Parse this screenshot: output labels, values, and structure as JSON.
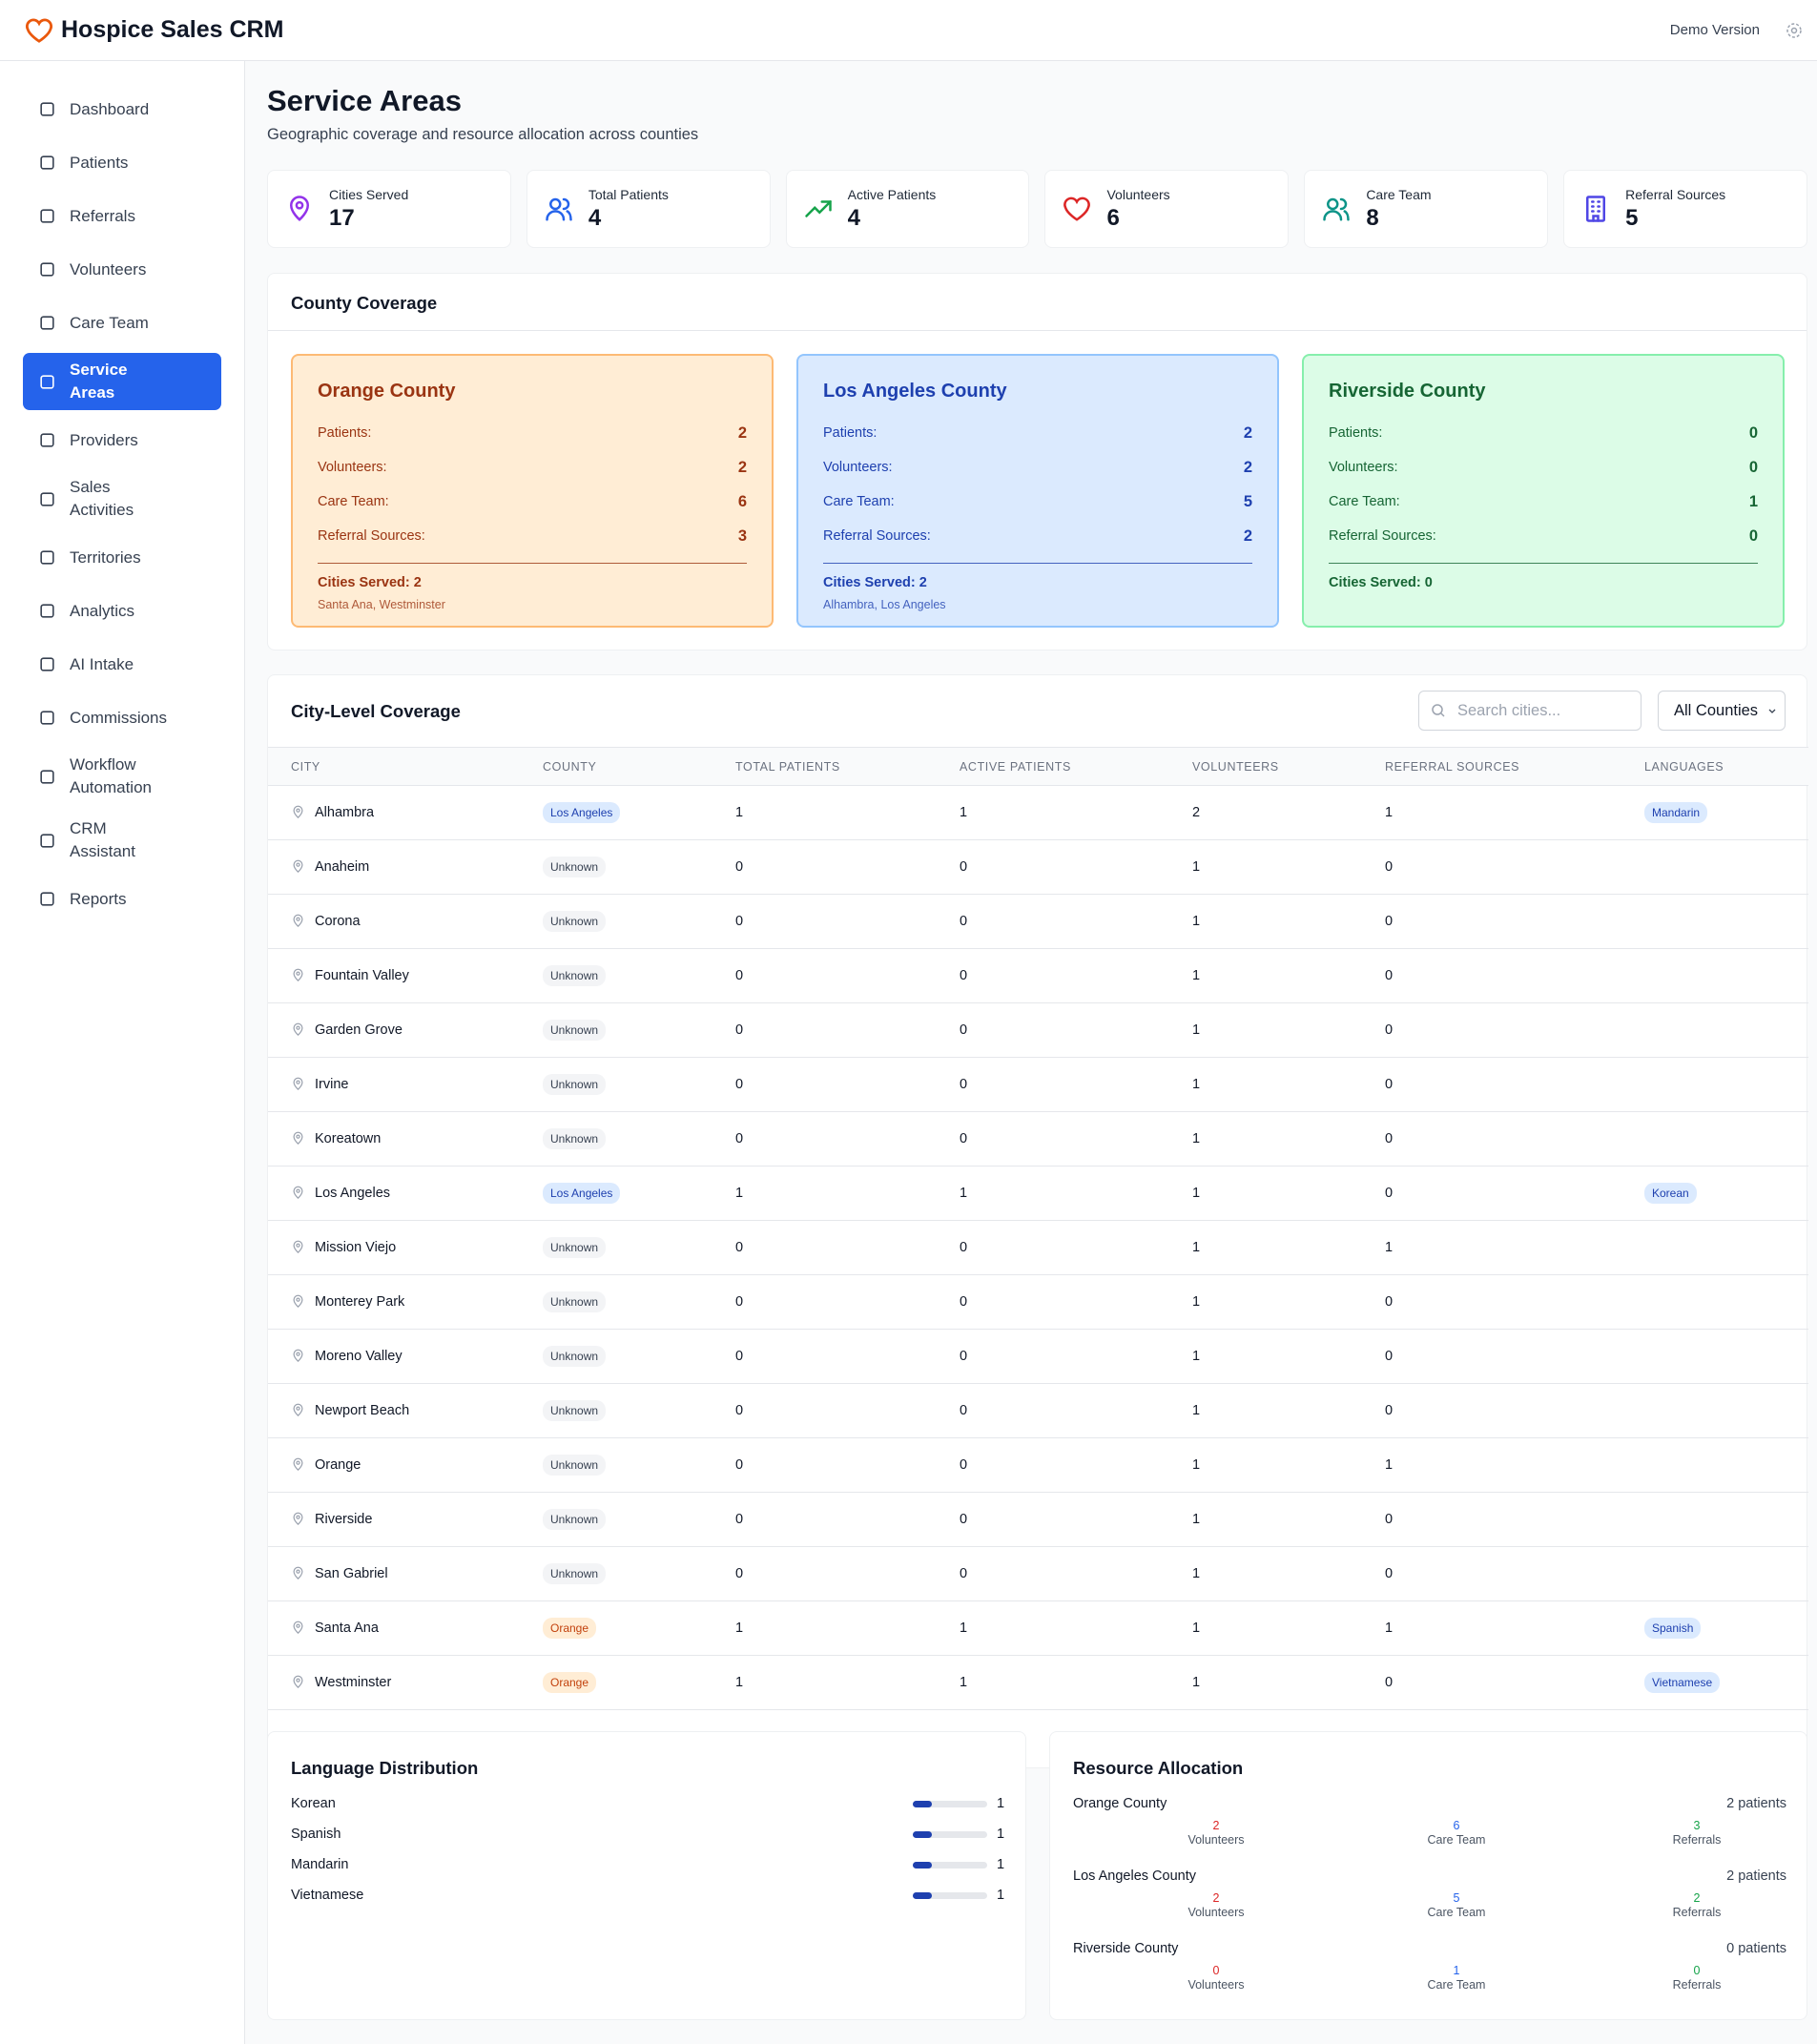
{
  "header": {
    "title": "Hospice Sales CRM",
    "badge": "Demo Version"
  },
  "nav": [
    "Dashboard",
    "Patients",
    "Referrals",
    "Volunteers",
    "Care Team",
    "Service Areas",
    "Providers",
    "Sales Activities",
    "Territories",
    "Analytics",
    "AI Intake",
    "Commissions",
    "Workflow Automation",
    "CRM Assistant",
    "Reports"
  ],
  "page": {
    "title": "Service Areas",
    "subtitle": "Geographic coverage and resource allocation across counties"
  },
  "stats": [
    {
      "label": "Cities Served",
      "value": 17
    },
    {
      "label": "Total Patients",
      "value": 4
    },
    {
      "label": "Active Patients",
      "value": 4
    },
    {
      "label": "Volunteers",
      "value": 6
    },
    {
      "label": "Care Team",
      "value": 8
    },
    {
      "label": "Referral Sources",
      "value": 5
    }
  ],
  "county_coverage": {
    "title": "County Coverage",
    "counties": [
      {
        "name": "Orange County",
        "rows": [
          {
            "label": "Patients:",
            "value": 2
          },
          {
            "label": "Volunteers:",
            "value": 2
          },
          {
            "label": "Care Team:",
            "value": 6
          },
          {
            "label": "Referral Sources:",
            "value": 3
          }
        ],
        "cities_served": "Cities Served: 2",
        "cities": "Santa Ana, Westminster"
      },
      {
        "name": "Los Angeles County",
        "rows": [
          {
            "label": "Patients:",
            "value": 2
          },
          {
            "label": "Volunteers:",
            "value": 2
          },
          {
            "label": "Care Team:",
            "value": 5
          },
          {
            "label": "Referral Sources:",
            "value": 2
          }
        ],
        "cities_served": "Cities Served: 2",
        "cities": "Alhambra, Los Angeles"
      },
      {
        "name": "Riverside County",
        "rows": [
          {
            "label": "Patients:",
            "value": 0
          },
          {
            "label": "Volunteers:",
            "value": 0
          },
          {
            "label": "Care Team:",
            "value": 1
          },
          {
            "label": "Referral Sources:",
            "value": 0
          }
        ],
        "cities_served": "Cities Served: 0"
      }
    ]
  },
  "city_table": {
    "title": "City-Level Coverage",
    "search_placeholder": "Search cities...",
    "filter": "All Counties",
    "columns": [
      "CITY",
      "COUNTY",
      "TOTAL PATIENTS",
      "ACTIVE PATIENTS",
      "VOLUNTEERS",
      "REFERRAL SOURCES",
      "LANGUAGES"
    ],
    "rows": [
      [
        "Alhambra",
        "Los Angeles",
        1,
        1,
        2,
        1,
        "Mandarin"
      ],
      [
        "Anaheim",
        "Unknown",
        0,
        0,
        1,
        0,
        null
      ],
      [
        "Corona",
        "Unknown",
        0,
        0,
        1,
        0,
        null
      ],
      [
        "Fountain Valley",
        "Unknown",
        0,
        0,
        1,
        0,
        null
      ],
      [
        "Garden Grove",
        "Unknown",
        0,
        0,
        1,
        0,
        null
      ],
      [
        "Irvine",
        "Unknown",
        0,
        0,
        1,
        0,
        null
      ],
      [
        "Koreatown",
        "Unknown",
        0,
        0,
        1,
        0,
        null
      ],
      [
        "Los Angeles",
        "Los Angeles",
        1,
        1,
        1,
        0,
        "Korean"
      ],
      [
        "Mission Viejo",
        "Unknown",
        0,
        0,
        1,
        1,
        null
      ],
      [
        "Monterey Park",
        "Unknown",
        0,
        0,
        1,
        0,
        null
      ],
      [
        "Moreno Valley",
        "Unknown",
        0,
        0,
        1,
        0,
        null
      ],
      [
        "Newport Beach",
        "Unknown",
        0,
        0,
        1,
        0,
        null
      ],
      [
        "Orange",
        "Unknown",
        0,
        0,
        1,
        1,
        null
      ],
      [
        "Riverside",
        "Unknown",
        0,
        0,
        1,
        0,
        null
      ],
      [
        "San Gabriel",
        "Unknown",
        0,
        0,
        1,
        0,
        null
      ],
      [
        "Santa Ana",
        "Orange",
        1,
        1,
        1,
        1,
        "Spanish"
      ],
      [
        "Westminster",
        "Orange",
        1,
        1,
        1,
        0,
        "Vietnamese"
      ]
    ]
  },
  "language_distribution": {
    "title": "Language Distribution",
    "items": [
      {
        "name": "Korean",
        "value": 1
      },
      {
        "name": "Spanish",
        "value": 1
      },
      {
        "name": "Mandarin",
        "value": 1
      },
      {
        "name": "Vietnamese",
        "value": 1
      }
    ]
  },
  "resource_allocation": {
    "title": "Resource Allocation",
    "counties": [
      {
        "name": "Orange County",
        "patients": "2 patients",
        "stats": [
          {
            "value": 2,
            "label": "Volunteers"
          },
          {
            "value": 6,
            "label": "Care Team"
          },
          {
            "value": 3,
            "label": "Referrals"
          }
        ]
      },
      {
        "name": "Los Angeles County",
        "patients": "2 patients",
        "stats": [
          {
            "value": 2,
            "label": "Volunteers"
          },
          {
            "value": 5,
            "label": "Care Team"
          },
          {
            "value": 2,
            "label": "Referrals"
          }
        ]
      },
      {
        "name": "Riverside County",
        "patients": "0 patients",
        "stats": [
          {
            "value": 0,
            "label": "Volunteers"
          },
          {
            "value": 1,
            "label": "Care Team"
          },
          {
            "value": 0,
            "label": "Referrals"
          }
        ]
      }
    ]
  }
}
